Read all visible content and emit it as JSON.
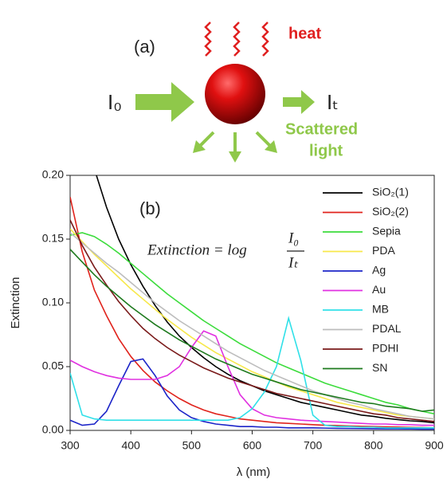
{
  "diagram": {
    "panel_label": "(a)",
    "incident": "I₀",
    "transmitted": "Iₜ",
    "heat": "heat",
    "scattered": [
      "Scattered",
      "light"
    ]
  },
  "chart_data": {
    "type": "line",
    "annotation": "(b)",
    "equation": {
      "lhs": "Extinction = log",
      "numerator": "I₀",
      "denominator": "Iₜ"
    },
    "xlabel": "λ (nm)",
    "ylabel": "Extinction",
    "xlim": [
      300,
      900
    ],
    "ylim": [
      0,
      0.2
    ],
    "xticks": [
      300,
      400,
      500,
      600,
      700,
      800,
      900
    ],
    "yticks": [
      {
        "value": 0,
        "label": "0.00"
      },
      {
        "value": 0.05,
        "label": "0.05"
      },
      {
        "value": 0.1,
        "label": "0.10"
      },
      {
        "value": 0.15,
        "label": "0.15"
      },
      {
        "value": 0.2,
        "label": "0.20"
      }
    ],
    "legend": "top-right",
    "x": [
      300,
      320,
      340,
      360,
      380,
      400,
      420,
      440,
      460,
      480,
      500,
      520,
      540,
      560,
      580,
      600,
      620,
      640,
      660,
      680,
      700,
      720,
      740,
      760,
      780,
      800,
      820,
      840,
      860,
      880,
      900
    ],
    "series": [
      {
        "name": "SiO₂(1)",
        "color": "#000000",
        "values": [
          null,
          null,
          0.205,
          0.175,
          0.15,
          0.13,
          0.113,
          0.098,
          0.085,
          0.074,
          0.065,
          0.057,
          0.05,
          0.044,
          0.039,
          0.035,
          0.031,
          0.028,
          0.025,
          0.022,
          0.02,
          0.018,
          0.016,
          0.014,
          0.012,
          0.011,
          0.0095,
          0.0085,
          0.0075,
          0.007,
          0.006
        ]
      },
      {
        "name": "SiO₂(2)",
        "color": "#e0231c",
        "values": [
          0.183,
          0.14,
          0.11,
          0.09,
          0.072,
          0.058,
          0.047,
          0.038,
          0.031,
          0.025,
          0.02,
          0.016,
          0.013,
          0.011,
          0.009,
          0.008,
          0.007,
          0.006,
          0.0055,
          0.005,
          0.0045,
          0.004,
          0.0038,
          0.0035,
          0.0032,
          0.003,
          0.0028,
          0.0026,
          0.0024,
          0.0022,
          0.002
        ]
      },
      {
        "name": "Sepia",
        "color": "#3cdc3c",
        "values": [
          0.153,
          0.155,
          0.152,
          0.146,
          0.139,
          0.131,
          0.123,
          0.115,
          0.107,
          0.1,
          0.093,
          0.086,
          0.08,
          0.074,
          0.068,
          0.063,
          0.058,
          0.053,
          0.049,
          0.045,
          0.041,
          0.037,
          0.034,
          0.031,
          0.028,
          0.025,
          0.022,
          0.02,
          0.017,
          0.015,
          0.013
        ]
      },
      {
        "name": "PDA",
        "color": "#f7e84a",
        "values": [
          0.158,
          0.148,
          0.138,
          0.129,
          0.12,
          0.111,
          0.103,
          0.095,
          0.087,
          0.08,
          0.073,
          0.067,
          0.061,
          0.056,
          0.051,
          0.046,
          0.042,
          0.038,
          0.034,
          0.031,
          0.028,
          0.025,
          0.022,
          0.02,
          0.018,
          0.016,
          0.014,
          0.012,
          0.011,
          0.01,
          0.009
        ]
      },
      {
        "name": "Ag",
        "color": "#1c24c8",
        "values": [
          0.008,
          0.004,
          0.005,
          0.015,
          0.035,
          0.054,
          0.056,
          0.043,
          0.027,
          0.016,
          0.01,
          0.007,
          0.005,
          0.004,
          0.003,
          0.003,
          0.0025,
          0.0025,
          0.002,
          0.002,
          0.002,
          0.0018,
          0.0016,
          0.0015,
          0.0014,
          0.0013,
          0.0012,
          0.0012,
          0.0011,
          0.001,
          0.001
        ]
      },
      {
        "name": "Au",
        "color": "#e030e0",
        "values": [
          0.055,
          0.05,
          0.046,
          0.043,
          0.041,
          0.04,
          0.04,
          0.04,
          0.043,
          0.05,
          0.065,
          0.078,
          0.074,
          0.05,
          0.028,
          0.017,
          0.012,
          0.01,
          0.009,
          0.008,
          0.0075,
          0.007,
          0.0065,
          0.006,
          0.0055,
          0.005,
          0.005,
          0.0045,
          0.0045,
          0.004,
          0.004
        ]
      },
      {
        "name": "MB",
        "color": "#30e0e8",
        "values": [
          0.045,
          0.012,
          0.009,
          0.008,
          0.008,
          0.008,
          0.008,
          0.008,
          0.008,
          0.008,
          0.008,
          0.008,
          0.008,
          0.008,
          0.01,
          0.017,
          0.03,
          0.05,
          0.088,
          0.055,
          0.012,
          0.004,
          0.003,
          0.003,
          0.0025,
          0.0025,
          0.002,
          0.002,
          0.002,
          0.002,
          0.002
        ]
      },
      {
        "name": "PDAL",
        "color": "#bdbdbd",
        "values": [
          0.155,
          0.147,
          0.139,
          0.131,
          0.124,
          0.116,
          0.108,
          0.1,
          0.093,
          0.086,
          0.08,
          0.074,
          0.068,
          0.062,
          0.057,
          0.052,
          0.047,
          0.043,
          0.039,
          0.035,
          0.031,
          0.028,
          0.025,
          0.022,
          0.02,
          0.017,
          0.015,
          0.013,
          0.011,
          0.01,
          0.009
        ]
      },
      {
        "name": "PDHI",
        "color": "#7a1a1a",
        "values": [
          0.165,
          0.145,
          0.128,
          0.114,
          0.101,
          0.09,
          0.08,
          0.072,
          0.065,
          0.059,
          0.054,
          0.049,
          0.045,
          0.041,
          0.038,
          0.035,
          0.032,
          0.029,
          0.027,
          0.025,
          0.023,
          0.021,
          0.019,
          0.017,
          0.015,
          0.013,
          0.012,
          0.01,
          0.009,
          0.008,
          0.007
        ]
      },
      {
        "name": "SN",
        "color": "#1e7a1e",
        "values": [
          0.142,
          0.132,
          0.122,
          0.113,
          0.105,
          0.097,
          0.09,
          0.083,
          0.077,
          0.071,
          0.066,
          0.061,
          0.056,
          0.052,
          0.048,
          0.044,
          0.041,
          0.038,
          0.035,
          0.032,
          0.03,
          0.028,
          0.026,
          0.024,
          0.022,
          0.021,
          0.019,
          0.018,
          0.017,
          0.015,
          0.016
        ]
      }
    ]
  }
}
